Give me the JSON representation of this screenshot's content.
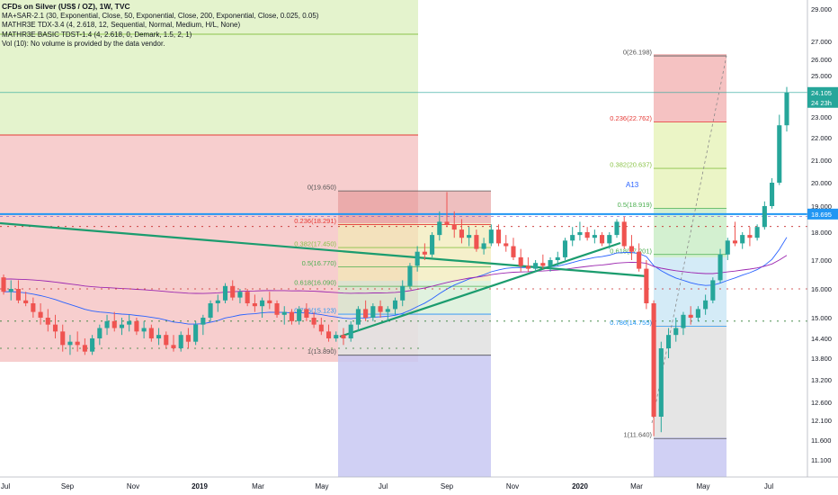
{
  "legend": {
    "title": "CFDs on Silver (US$ / OZ), 1W, TVC",
    "line1": "MA+SAR-2.1 (30, Exponential, Close, 50, Exponential, Close, 200, Exponential, Close, 0.025, 0.05)",
    "line2": "MATHR3E TDX-3.4 (4, 2.618, 12, Sequential, Normal, Medium, H/L, None)",
    "line3": "MATHR3E BASIC TDST-1.4 (4, 2.618, 0, Demark, 1.5, 2, 1)",
    "line4": "Vol (10): No volume is provided by the data vendor."
  },
  "colors": {
    "up": "#26a69a",
    "down": "#ef5350",
    "price_line": "#2196f3",
    "trend": "#1b9c6e",
    "ma_purple": "#9c27b0",
    "ma_blue": "#2962ff",
    "bg_red": "#f6c6c6",
    "bg_green": "#dff1c4",
    "bg_violet": "#c8c8f2",
    "bg_gray": "#e2e2e2",
    "axis_text": "#131722"
  },
  "chart_data": {
    "type": "candlestick",
    "y_ticks": [
      "29.000",
      "27.000",
      "26.000",
      "25.000",
      "24.000",
      "23.000",
      "22.000",
      "21.000",
      "20.000",
      "19.000",
      "18.000",
      "17.000",
      "16.000",
      "15.000",
      "14.400",
      "13.800",
      "13.200",
      "12.600",
      "12.100",
      "11.600",
      "11.100"
    ],
    "x_ticks": [
      "Jul",
      "Sep",
      "Nov",
      "2019",
      "Mar",
      "May",
      "Jul",
      "Sep",
      "Nov",
      "2020",
      "Mar",
      "May",
      "Jul"
    ],
    "price_labels": [
      {
        "text": "24.105",
        "price": 24.105,
        "color": "#26a69a"
      },
      {
        "text": "24 23h",
        "price": 23.65,
        "color": "#26a69a"
      },
      {
        "text": "18.695",
        "price": 18.695,
        "color": "#2196f3"
      }
    ],
    "fib_left": [
      {
        "label": "0(19.650)",
        "price": 19.65,
        "color": "#555555"
      },
      {
        "label": "0.236(18.291)",
        "price": 18.291,
        "color": "#e53935"
      },
      {
        "label": "0.382(17.450)",
        "price": 17.45,
        "color": "#8bc34a"
      },
      {
        "label": "0.5(16.770)",
        "price": 16.77,
        "color": "#4caf50"
      },
      {
        "label": "0.618(16.090)",
        "price": 16.09,
        "color": "#4caf50"
      },
      {
        "label": "0.786(15.123)",
        "price": 15.123,
        "color": "#2196f3"
      },
      {
        "label": "1(13.890)",
        "price": 13.89,
        "color": "#555555"
      }
    ],
    "fib_right": [
      {
        "label": "0(26.198)",
        "price": 26.198,
        "color": "#555555"
      },
      {
        "label": "0.236(22.762)",
        "price": 22.762,
        "color": "#e53935"
      },
      {
        "label": "0.382(20.637)",
        "price": 20.637,
        "color": "#8bc34a"
      },
      {
        "label": "0.5(18.919)",
        "price": 18.919,
        "color": "#4caf50"
      },
      {
        "label": "0.618(17.201)",
        "price": 17.201,
        "color": "#4caf50"
      },
      {
        "label": "0.786(14.755)",
        "price": 14.755,
        "color": "#2196f3"
      },
      {
        "label": "1(11.640)",
        "price": 11.64,
        "color": "#555555"
      }
    ],
    "annotation": "A13",
    "candles": [
      [
        16.4,
        16.5,
        15.8,
        15.9
      ],
      [
        15.9,
        16.3,
        15.6,
        16.0
      ],
      [
        16.0,
        16.3,
        15.5,
        15.6
      ],
      [
        15.6,
        15.9,
        15.4,
        15.5
      ],
      [
        15.5,
        15.7,
        15.0,
        15.2
      ],
      [
        15.2,
        15.5,
        14.8,
        15.0
      ],
      [
        15.0,
        15.3,
        14.6,
        14.8
      ],
      [
        14.8,
        15.1,
        14.4,
        14.6
      ],
      [
        14.6,
        14.8,
        14.0,
        14.2
      ],
      [
        14.2,
        14.5,
        13.9,
        14.3
      ],
      [
        14.3,
        14.6,
        14.0,
        14.2
      ],
      [
        14.2,
        14.4,
        13.9,
        14.0
      ],
      [
        14.0,
        14.5,
        13.9,
        14.4
      ],
      [
        14.4,
        14.8,
        14.2,
        14.7
      ],
      [
        14.7,
        15.1,
        14.5,
        14.9
      ],
      [
        14.9,
        15.2,
        14.6,
        14.7
      ],
      [
        14.7,
        15.0,
        14.5,
        14.8
      ],
      [
        14.8,
        15.1,
        14.6,
        14.9
      ],
      [
        14.9,
        15.0,
        14.5,
        14.6
      ],
      [
        14.6,
        14.9,
        14.4,
        14.7
      ],
      [
        14.7,
        14.8,
        14.3,
        14.4
      ],
      [
        14.4,
        14.7,
        14.2,
        14.5
      ],
      [
        14.5,
        14.6,
        14.1,
        14.2
      ],
      [
        14.2,
        14.5,
        14.0,
        14.1
      ],
      [
        14.1,
        14.6,
        14.0,
        14.5
      ],
      [
        14.5,
        14.7,
        14.1,
        14.3
      ],
      [
        14.3,
        14.9,
        14.2,
        14.8
      ],
      [
        14.8,
        15.1,
        14.5,
        15.0
      ],
      [
        15.0,
        15.6,
        14.9,
        15.5
      ],
      [
        15.5,
        15.8,
        15.2,
        15.6
      ],
      [
        15.6,
        16.2,
        15.5,
        16.1
      ],
      [
        16.1,
        16.3,
        15.6,
        15.7
      ],
      [
        15.7,
        16.0,
        15.5,
        15.9
      ],
      [
        15.9,
        16.0,
        15.4,
        15.5
      ],
      [
        15.5,
        15.8,
        15.2,
        15.4
      ],
      [
        15.4,
        15.7,
        15.0,
        15.6
      ],
      [
        15.6,
        15.9,
        15.3,
        15.5
      ],
      [
        15.5,
        15.6,
        15.0,
        15.1
      ],
      [
        15.1,
        15.4,
        14.8,
        15.2
      ],
      [
        15.2,
        15.3,
        14.8,
        14.9
      ],
      [
        14.9,
        15.4,
        14.8,
        15.3
      ],
      [
        15.3,
        15.5,
        14.9,
        15.0
      ],
      [
        15.0,
        15.2,
        14.7,
        14.8
      ],
      [
        14.8,
        15.0,
        14.5,
        14.6
      ],
      [
        14.6,
        14.8,
        14.3,
        14.4
      ],
      [
        14.4,
        14.6,
        14.3,
        14.5
      ],
      [
        14.5,
        14.7,
        14.2,
        14.4
      ],
      [
        14.4,
        14.9,
        14.3,
        14.8
      ],
      [
        14.8,
        15.4,
        14.6,
        15.3
      ],
      [
        15.3,
        15.6,
        14.9,
        15.0
      ],
      [
        15.0,
        15.5,
        14.9,
        15.4
      ],
      [
        15.4,
        15.6,
        15.0,
        15.2
      ],
      [
        15.2,
        15.4,
        14.9,
        15.3
      ],
      [
        15.3,
        15.7,
        15.1,
        15.6
      ],
      [
        15.6,
        16.3,
        15.4,
        16.1
      ],
      [
        16.1,
        16.9,
        16.0,
        16.8
      ],
      [
        16.8,
        17.5,
        16.6,
        17.3
      ],
      [
        17.3,
        17.6,
        17.0,
        17.2
      ],
      [
        17.2,
        18.0,
        17.1,
        17.9
      ],
      [
        17.9,
        18.8,
        17.7,
        18.4
      ],
      [
        18.4,
        19.6,
        18.2,
        18.3
      ],
      [
        18.3,
        18.8,
        17.8,
        18.1
      ],
      [
        18.1,
        18.5,
        17.6,
        17.8
      ],
      [
        17.8,
        18.2,
        17.5,
        17.9
      ],
      [
        17.9,
        18.1,
        17.3,
        17.4
      ],
      [
        17.4,
        17.8,
        17.2,
        17.6
      ],
      [
        17.6,
        18.3,
        17.5,
        18.1
      ],
      [
        18.1,
        18.3,
        17.5,
        17.6
      ],
      [
        17.6,
        17.9,
        17.3,
        17.5
      ],
      [
        17.5,
        17.8,
        17.0,
        17.1
      ],
      [
        17.1,
        17.4,
        16.6,
        16.8
      ],
      [
        16.8,
        17.1,
        16.6,
        16.7
      ],
      [
        16.7,
        17.0,
        16.6,
        16.9
      ],
      [
        16.9,
        17.2,
        16.7,
        16.8
      ],
      [
        16.8,
        17.1,
        16.6,
        17.0
      ],
      [
        17.0,
        17.3,
        16.8,
        17.1
      ],
      [
        17.1,
        17.8,
        17.0,
        17.7
      ],
      [
        17.7,
        18.2,
        17.5,
        17.9
      ],
      [
        17.9,
        18.4,
        17.7,
        18.0
      ],
      [
        18.0,
        18.2,
        17.7,
        17.8
      ],
      [
        17.8,
        18.1,
        17.6,
        17.9
      ],
      [
        17.9,
        18.0,
        17.5,
        17.6
      ],
      [
        17.6,
        18.0,
        17.4,
        17.9
      ],
      [
        17.9,
        18.5,
        17.8,
        18.4
      ],
      [
        18.4,
        18.6,
        17.4,
        17.5
      ],
      [
        17.5,
        17.9,
        17.0,
        17.3
      ],
      [
        17.3,
        17.6,
        16.6,
        16.7
      ],
      [
        16.7,
        17.0,
        15.3,
        15.5
      ],
      [
        15.5,
        15.6,
        11.7,
        12.2
      ],
      [
        12.2,
        14.3,
        11.8,
        14.1
      ],
      [
        14.1,
        14.7,
        13.8,
        14.5
      ],
      [
        14.5,
        15.0,
        14.3,
        14.7
      ],
      [
        14.7,
        15.2,
        14.5,
        15.1
      ],
      [
        15.1,
        15.4,
        14.8,
        15.0
      ],
      [
        15.0,
        15.4,
        14.9,
        15.3
      ],
      [
        15.3,
        15.8,
        15.1,
        15.6
      ],
      [
        15.6,
        16.4,
        15.5,
        16.3
      ],
      [
        16.3,
        17.4,
        16.2,
        17.2
      ],
      [
        17.2,
        17.8,
        17.0,
        17.7
      ],
      [
        17.7,
        18.4,
        17.5,
        17.6
      ],
      [
        17.6,
        18.0,
        17.4,
        17.9
      ],
      [
        17.9,
        18.2,
        17.5,
        17.8
      ],
      [
        17.8,
        18.3,
        17.7,
        18.2
      ],
      [
        18.2,
        19.2,
        18.1,
        19.0
      ],
      [
        19.0,
        20.2,
        18.9,
        20.0
      ],
      [
        20.0,
        23.1,
        19.9,
        22.6
      ],
      [
        22.6,
        24.4,
        22.3,
        24.1
      ]
    ]
  }
}
